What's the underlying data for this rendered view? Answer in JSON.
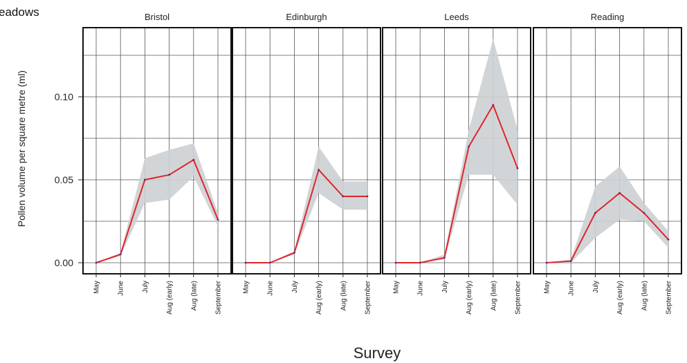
{
  "chart_data": {
    "type": "line",
    "title": "eadows",
    "xlabel": "Survey",
    "ylabel": "Pollen volume per square metre (ml)",
    "ylim": [
      0,
      0.14
    ],
    "yticks": [
      "0.00",
      "0.05",
      "0.10"
    ],
    "ytick_values": [
      0,
      0.05,
      0.1
    ],
    "grid": true,
    "line_color": "#e0242b",
    "band_color": "#cdd0d3",
    "categories": [
      "May",
      "June",
      "July",
      "Aug (early)",
      "Aug (late)",
      "September"
    ],
    "panels": [
      {
        "name": "Bristol",
        "values": [
          0.0,
          0.005,
          0.05,
          0.053,
          0.062,
          0.026
        ],
        "lower": [
          0.0,
          0.004,
          0.036,
          0.038,
          0.052,
          0.022
        ],
        "upper": [
          0.0,
          0.006,
          0.063,
          0.068,
          0.072,
          0.03
        ]
      },
      {
        "name": "Edinburgh",
        "values": [
          0.0,
          0.0,
          0.006,
          0.056,
          0.04,
          0.04
        ],
        "lower": [
          0.0,
          0.0,
          0.005,
          0.042,
          0.032,
          0.032
        ],
        "upper": [
          0.0,
          0.0,
          0.007,
          0.07,
          0.049,
          0.049
        ]
      },
      {
        "name": "Leeds",
        "values": [
          0.0,
          0.0,
          0.003,
          0.07,
          0.095,
          0.057
        ],
        "lower": [
          0.0,
          0.0,
          0.002,
          0.053,
          0.053,
          0.035
        ],
        "upper": [
          0.0,
          0.0,
          0.005,
          0.08,
          0.135,
          0.08
        ]
      },
      {
        "name": "Reading",
        "values": [
          0.0,
          0.001,
          0.03,
          0.042,
          0.03,
          0.014
        ],
        "lower": [
          0.0,
          0.0,
          0.015,
          0.026,
          0.025,
          0.009
        ],
        "upper": [
          0.0,
          0.002,
          0.046,
          0.058,
          0.036,
          0.019
        ]
      }
    ]
  }
}
